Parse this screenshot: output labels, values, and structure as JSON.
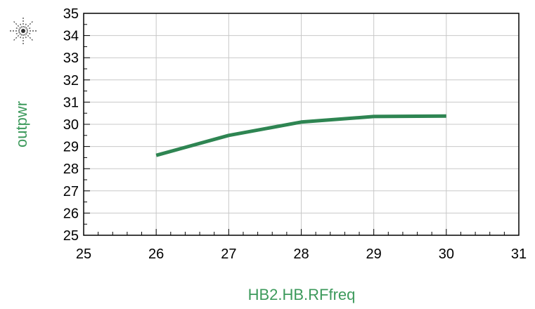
{
  "logo": {
    "name": "starburst-logo"
  },
  "colors": {
    "series": "#2e8552",
    "label": "#3d9a5c",
    "grid": "#c8c8c8",
    "axis": "#000000",
    "text": "#000000"
  },
  "chart_data": {
    "type": "line",
    "title": "",
    "xlabel": "HB2.HB.RFfreq",
    "ylabel": "outpwr",
    "xlim": [
      25,
      31
    ],
    "ylim": [
      25,
      35
    ],
    "xticks": [
      25,
      26,
      27,
      28,
      29,
      30,
      31
    ],
    "yticks": [
      25,
      26,
      27,
      28,
      29,
      30,
      31,
      32,
      33,
      34,
      35
    ],
    "grid": true,
    "legend": "none",
    "series": [
      {
        "x": [
          26,
          27,
          28,
          29,
          30
        ],
        "y": [
          28.6,
          29.5,
          30.1,
          30.35,
          30.37
        ]
      }
    ]
  }
}
